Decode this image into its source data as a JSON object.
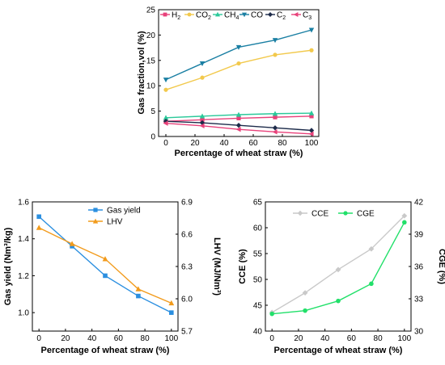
{
  "chart_data": [
    {
      "type": "line",
      "xlabel": "Percentage of wheat straw (%)",
      "ylabel": "Gas fraction,vol (%)",
      "x": [
        0,
        25,
        50,
        75,
        100
      ],
      "xlim": [
        -5,
        105
      ],
      "ylim": [
        0,
        25
      ],
      "xticks": [
        0,
        20,
        40,
        60,
        80,
        100
      ],
      "yticks": [
        0,
        5,
        10,
        15,
        20,
        25
      ],
      "legend_position": "top",
      "series": [
        {
          "name": "H2",
          "label_main": "H",
          "label_sub": "2",
          "color": "#e8417a",
          "marker": "square",
          "values": [
            3.0,
            3.3,
            3.6,
            3.8,
            4.0
          ]
        },
        {
          "name": "CO2",
          "label_main": "CO",
          "label_sub": "2",
          "color": "#f2c94c",
          "marker": "circle",
          "values": [
            9.2,
            11.6,
            14.4,
            16.1,
            17.0
          ]
        },
        {
          "name": "CH4",
          "label_main": "CH",
          "label_sub": "4",
          "color": "#2bc99a",
          "marker": "triangle-up",
          "values": [
            3.7,
            4.0,
            4.3,
            4.5,
            4.6
          ]
        },
        {
          "name": "CO",
          "label_main": "CO",
          "label_sub": "",
          "color": "#1a7fa3",
          "marker": "triangle-down",
          "values": [
            11.2,
            14.4,
            17.6,
            19.0,
            21.0
          ]
        },
        {
          "name": "C2",
          "label_main": "C",
          "label_sub": "2",
          "color": "#1d2b4a",
          "marker": "diamond",
          "values": [
            3.0,
            2.7,
            2.2,
            1.7,
            1.2
          ]
        },
        {
          "name": "C3",
          "label_main": "C",
          "label_sub": "3",
          "color": "#e8417a",
          "marker": "triangle-left",
          "values": [
            2.6,
            2.1,
            1.4,
            0.9,
            0.5
          ]
        }
      ]
    },
    {
      "type": "line",
      "xlabel": "Percentage of wheat straw (%)",
      "ylabel_left": "Gas yield (Nm³/kg)",
      "ylabel_right": "LHV (MJ/Nm³)",
      "x": [
        0,
        25,
        50,
        75,
        100
      ],
      "xlim": [
        -5,
        105
      ],
      "ylim_left": [
        0.9,
        1.6
      ],
      "ylim_right": [
        5.7,
        6.9
      ],
      "xticks": [
        0,
        20,
        40,
        60,
        80,
        100
      ],
      "yticks_left": [
        "1.0",
        "1.2",
        "1.4",
        "1.6"
      ],
      "yticks_right": [
        "5.7",
        "6.0",
        "6.3",
        "6.6",
        "6.9"
      ],
      "legend_position": "top-right",
      "series": [
        {
          "name": "Gas yield",
          "axis": "left",
          "color": "#2b8fe0",
          "marker": "square",
          "values": [
            1.52,
            1.36,
            1.2,
            1.09,
            1.0
          ]
        },
        {
          "name": "LHV",
          "axis": "right",
          "color": "#f29b1c",
          "marker": "triangle-up",
          "values": [
            6.66,
            6.51,
            6.37,
            6.09,
            5.96
          ]
        }
      ]
    },
    {
      "type": "line",
      "xlabel": "Percentage of wheat straw (%)",
      "ylabel_left": "CCE (%)",
      "ylabel_right": "CGE (%)",
      "x": [
        0,
        25,
        50,
        75,
        100
      ],
      "xlim": [
        -5,
        105
      ],
      "ylim_left": [
        40,
        65
      ],
      "ylim_right": [
        30,
        42
      ],
      "xticks": [
        0,
        20,
        40,
        60,
        80,
        100
      ],
      "yticks_left": [
        "40",
        "45",
        "50",
        "55",
        "60",
        "65"
      ],
      "yticks_right": [
        "30",
        "33",
        "36",
        "39",
        "42"
      ],
      "legend_position": "top-left",
      "series": [
        {
          "name": "CCE",
          "axis": "left",
          "color": "#c9c9c9",
          "marker": "diamond",
          "values": [
            43.6,
            47.4,
            51.9,
            55.9,
            62.3
          ]
        },
        {
          "name": "CGE",
          "axis": "right",
          "color": "#22e06a",
          "marker": "circle",
          "values": [
            31.6,
            31.9,
            32.8,
            34.4,
            40.1
          ]
        }
      ]
    }
  ]
}
